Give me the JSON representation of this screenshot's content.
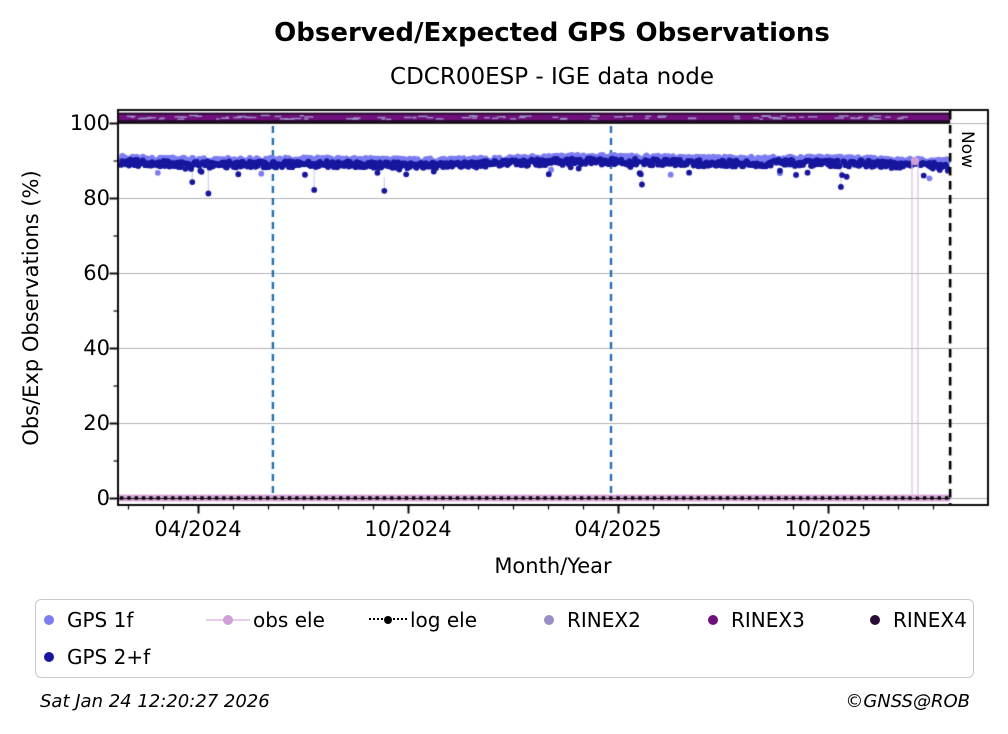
{
  "header": {
    "title": "Observed/Expected GPS Observations",
    "subtitle": "CDCR00ESP - IGE data node"
  },
  "footer": {
    "timestamp": "Sat Jan 24 12:20:27 2026",
    "credit": "©GNSS@ROB"
  },
  "chart_data": {
    "type": "scatter",
    "title": "Observed/Expected GPS Observations",
    "subtitle": "CDCR00ESP - IGE data node",
    "xlabel": "Month/Year",
    "ylabel": "Obs/Exp Observations (%)",
    "now_marker": {
      "label": "Now",
      "month": 23.49,
      "color": "#000000",
      "style": "dashed"
    },
    "x_axis": {
      "unit": "months since 02/2024",
      "ticks": [
        {
          "label": "04/2024",
          "month": 2
        },
        {
          "label": "10/2024",
          "month": 8
        },
        {
          "label": "04/2025",
          "month": 14
        },
        {
          "label": "10/2025",
          "month": 20
        }
      ],
      "minor_tick_months": [
        0,
        1,
        2,
        3,
        4,
        5,
        6,
        7,
        8,
        9,
        10,
        11,
        12,
        13,
        14,
        15,
        16,
        17,
        18,
        19,
        20,
        21,
        22,
        23
      ],
      "lim_months": [
        -0.3,
        24.9
      ]
    },
    "y_axis": {
      "ticks": [
        0,
        20,
        40,
        60,
        80,
        100
      ],
      "minor_ticks": [
        10,
        30,
        50,
        70,
        90
      ],
      "lim": [
        -1.9,
        103.5
      ],
      "grid": true,
      "grid_color": "#b5b5b5"
    },
    "event_lines": [
      {
        "month": 4.14,
        "color": "#2470b4",
        "style": "dashed"
      },
      {
        "month": 13.8,
        "color": "#2470b4",
        "style": "dashed"
      }
    ],
    "series": [
      {
        "name": "GPS 1f",
        "type": "scatter-daily",
        "color": "#7d7df2",
        "mean_pct": 90.4,
        "spread_pct": 1.2,
        "months": [
          -0.2,
          23.45
        ],
        "note": "dense daily cloud hugging ~90-91%"
      },
      {
        "name": "GPS 2+f",
        "type": "scatter-daily",
        "color": "#16169e",
        "mean_pct": 89.2,
        "spread_pct": 1.7,
        "months": [
          -0.2,
          23.45
        ],
        "dip_probability": 0.05,
        "deep_dip_probability": 0.012,
        "dip_min_pct": 82,
        "note": "dense daily cloud ~88-90% with sporadic dips to 82-86%"
      },
      {
        "name": "obs ele",
        "type": "line",
        "color": "#d9a6d9",
        "value_pct": 0,
        "spikes": [
          {
            "month": 22.4,
            "value_pct": 90
          },
          {
            "month": 22.57,
            "value_pct": 90
          }
        ]
      },
      {
        "name": "log ele",
        "type": "dotted-line",
        "color": "#000000",
        "value_pct": 0
      },
      {
        "name": "RINEX2",
        "type": "line",
        "color": "#9b8ec4",
        "value_pct": 101.5
      },
      {
        "name": "RINEX3",
        "type": "line",
        "color": "#70107c",
        "value_pct": 101.5
      },
      {
        "name": "RINEX4",
        "type": "line",
        "color": "#2b0b33",
        "value_pct": 101.5
      },
      {
        "name": "reference-100",
        "type": "line",
        "color": "#0a0a0a",
        "value_pct": 100
      }
    ]
  },
  "legend": {
    "items": [
      {
        "label": "GPS 1f",
        "marker": "dot",
        "color": "#7d7df2"
      },
      {
        "label": "obs ele",
        "marker": "line-dot",
        "color": "#cfa0d8",
        "line_color": "#e6cde9"
      },
      {
        "label": "log ele",
        "marker": "dotted-line-dot",
        "color": "#000000"
      },
      {
        "label": "RINEX2",
        "marker": "dot",
        "color": "#9b8ec4"
      },
      {
        "label": "RINEX3",
        "marker": "dot",
        "color": "#70107c"
      },
      {
        "label": "RINEX4",
        "marker": "dot",
        "color": "#2b0b33"
      },
      {
        "label": "GPS 2+f",
        "marker": "dot",
        "color": "#16169e"
      }
    ]
  }
}
